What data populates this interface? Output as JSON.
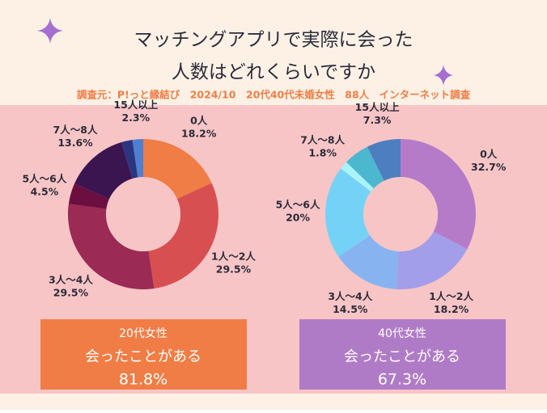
{
  "title": [
    "マッチングアプリで実際に会った",
    "人数はどれくらいですか"
  ],
  "source": "調査元：P!っと縁結び　2024/10　20代40代未婚女性　88人　インターネット調査",
  "chart_data": [
    {
      "type": "pie",
      "categories": [
        "0人",
        "1人～2人",
        "3人～4人",
        "5人～6人",
        "7人～8人",
        null,
        "15人以上"
      ],
      "values": [
        18.2,
        29.5,
        29.5,
        4.5,
        13.6,
        2.4,
        2.3
      ],
      "value_labels": [
        "18.2%",
        "29.5%",
        "29.5%",
        "4.5%",
        "13.6%",
        null,
        "2.3%"
      ],
      "colors": [
        "#ef7d45",
        "#d84f52",
        "#9b2a55",
        "#6a0f40",
        "#3a1550",
        "#2c3580",
        "#4f7fd0"
      ]
    },
    {
      "type": "pie",
      "categories": [
        "0人",
        "1人～2人",
        "3人～4人",
        "5人～6人",
        "7人～8人",
        null,
        "15人以上"
      ],
      "values": [
        32.7,
        18.2,
        14.5,
        20,
        1.8,
        5.5,
        7.3
      ],
      "value_labels": [
        "32.7%",
        "18.2%",
        "14.5%",
        "20%",
        "1.8%",
        null,
        "7.3%"
      ],
      "colors": [
        "#b57bc8",
        "#a39ee9",
        "#88b3f1",
        "#74d2f7",
        "#a8f4f8",
        "#4cb8cf",
        "#4d7ec0"
      ]
    }
  ],
  "summary": [
    {
      "group": "20代女性",
      "text": "会ったことがある",
      "value": "81.8%",
      "color": "#ef7d45"
    },
    {
      "group": "40代女性",
      "text": "会ったことがある",
      "value": "67.3%",
      "color": "#b07bc6"
    }
  ]
}
